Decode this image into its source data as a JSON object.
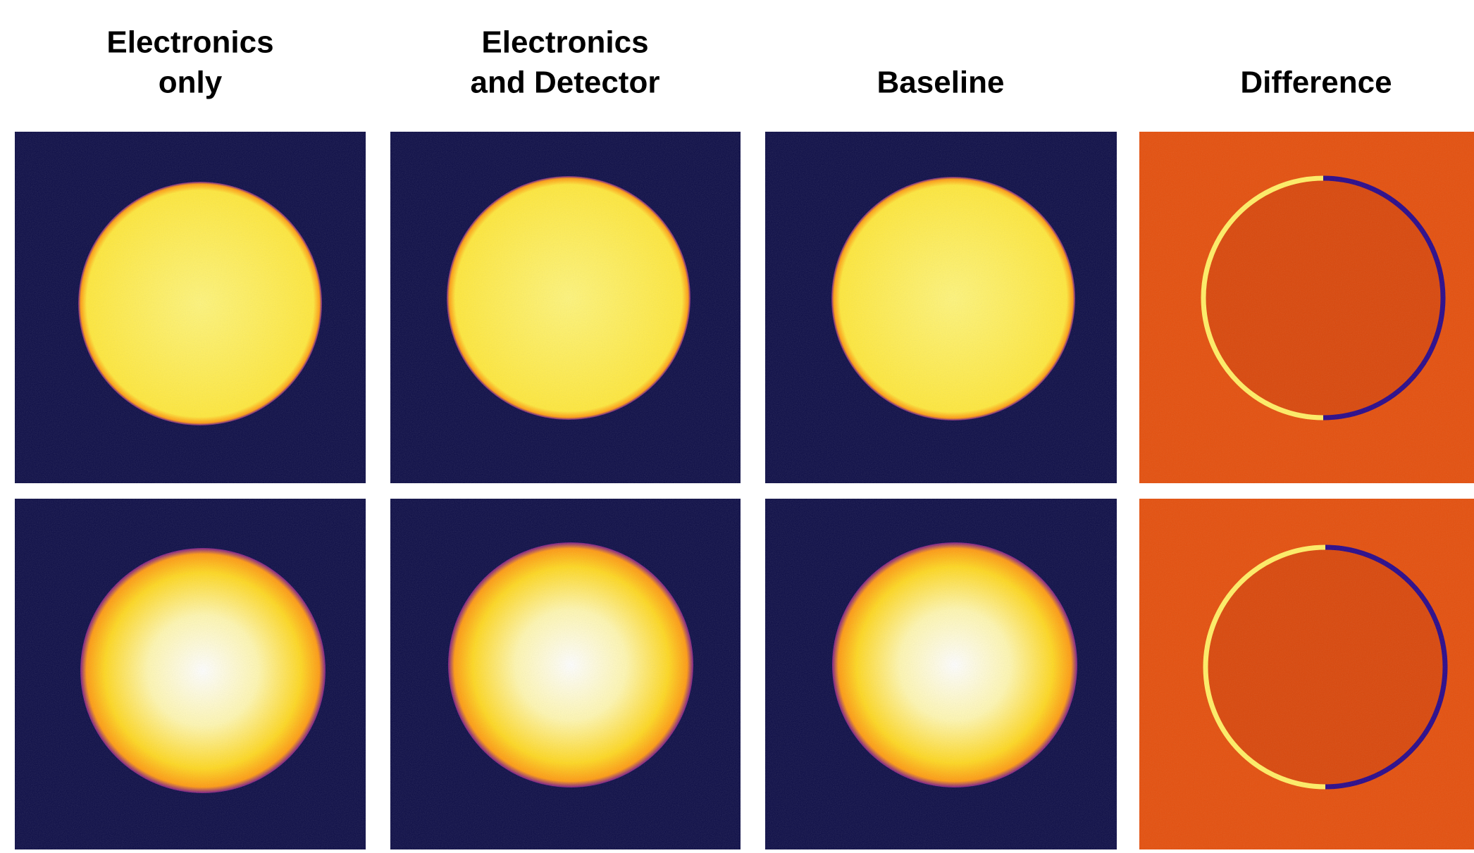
{
  "headings": [
    [
      "Electronics",
      "only"
    ],
    [
      "Electronics",
      "and Detector"
    ],
    [
      "Baseline"
    ],
    [
      "Difference"
    ]
  ]
}
